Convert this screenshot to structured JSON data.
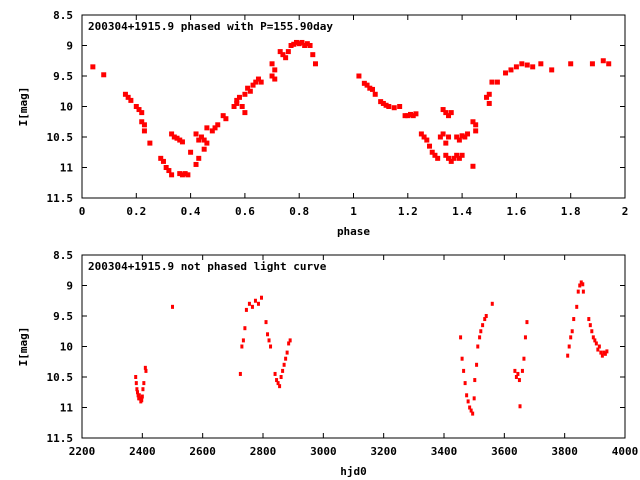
{
  "chart_data": [
    {
      "type": "scatter",
      "title": "200304+1915.9 phased with P=155.90day",
      "xlabel": "phase",
      "ylabel": "I[mag]",
      "xlim": [
        0,
        2
      ],
      "ylim": [
        11.5,
        8.5
      ],
      "y_inverted": true,
      "xticks": [
        0,
        0.2,
        0.4,
        0.6,
        0.8,
        1,
        1.2,
        1.4,
        1.6,
        1.8,
        2
      ],
      "xtick_labels": [
        "0",
        "0.2",
        "0.4",
        "0.6",
        "0.8",
        "1",
        "1.2",
        "1.4",
        "1.6",
        "1.8",
        "2"
      ],
      "yticks": [
        8.5,
        9,
        9.5,
        10,
        10.5,
        11,
        11.5
      ],
      "ytick_labels": [
        "8.5",
        "9",
        "9.5",
        "10",
        "10.5",
        "11",
        "11.5"
      ],
      "grid": false,
      "marker": "filled-square",
      "color": "#ff0000",
      "points": [
        [
          0.04,
          9.35
        ],
        [
          0.08,
          9.48
        ],
        [
          0.16,
          9.8
        ],
        [
          0.17,
          9.85
        ],
        [
          0.18,
          9.9
        ],
        [
          0.2,
          10.0
        ],
        [
          0.21,
          10.05
        ],
        [
          0.22,
          10.1
        ],
        [
          0.22,
          10.25
        ],
        [
          0.23,
          10.3
        ],
        [
          0.23,
          10.4
        ],
        [
          0.25,
          10.6
        ],
        [
          0.29,
          10.85
        ],
        [
          0.3,
          10.9
        ],
        [
          0.31,
          11.0
        ],
        [
          0.32,
          11.05
        ],
        [
          0.33,
          11.12
        ],
        [
          0.33,
          10.45
        ],
        [
          0.34,
          10.5
        ],
        [
          0.35,
          10.52
        ],
        [
          0.36,
          10.55
        ],
        [
          0.37,
          10.58
        ],
        [
          0.36,
          11.1
        ],
        [
          0.37,
          11.12
        ],
        [
          0.38,
          11.1
        ],
        [
          0.39,
          11.12
        ],
        [
          0.4,
          10.75
        ],
        [
          0.42,
          10.95
        ],
        [
          0.43,
          10.85
        ],
        [
          0.45,
          10.7
        ],
        [
          0.42,
          10.45
        ],
        [
          0.43,
          10.55
        ],
        [
          0.44,
          10.5
        ],
        [
          0.45,
          10.55
        ],
        [
          0.46,
          10.6
        ],
        [
          0.46,
          10.35
        ],
        [
          0.48,
          10.4
        ],
        [
          0.49,
          10.35
        ],
        [
          0.5,
          10.3
        ],
        [
          0.52,
          10.15
        ],
        [
          0.53,
          10.2
        ],
        [
          0.56,
          10.0
        ],
        [
          0.57,
          9.95
        ],
        [
          0.57,
          9.9
        ],
        [
          0.58,
          9.85
        ],
        [
          0.59,
          10.0
        ],
        [
          0.6,
          9.8
        ],
        [
          0.6,
          10.1
        ],
        [
          0.61,
          9.7
        ],
        [
          0.62,
          9.75
        ],
        [
          0.63,
          9.65
        ],
        [
          0.64,
          9.6
        ],
        [
          0.65,
          9.55
        ],
        [
          0.66,
          9.6
        ],
        [
          0.7,
          9.3
        ],
        [
          0.7,
          9.5
        ],
        [
          0.71,
          9.55
        ],
        [
          0.71,
          9.4
        ],
        [
          0.73,
          9.1
        ],
        [
          0.74,
          9.15
        ],
        [
          0.75,
          9.2
        ],
        [
          0.76,
          9.1
        ],
        [
          0.77,
          9.0
        ],
        [
          0.78,
          8.98
        ],
        [
          0.79,
          8.95
        ],
        [
          0.8,
          8.97
        ],
        [
          0.81,
          8.95
        ],
        [
          0.82,
          9.0
        ],
        [
          0.83,
          8.97
        ],
        [
          0.84,
          9.0
        ],
        [
          0.85,
          9.15
        ],
        [
          0.86,
          9.3
        ],
        [
          1.02,
          9.5
        ],
        [
          1.04,
          9.62
        ],
        [
          1.05,
          9.65
        ],
        [
          1.06,
          9.7
        ],
        [
          1.07,
          9.72
        ],
        [
          1.08,
          9.8
        ],
        [
          1.1,
          9.92
        ],
        [
          1.11,
          9.95
        ],
        [
          1.12,
          9.98
        ],
        [
          1.13,
          10.0
        ],
        [
          1.15,
          10.02
        ],
        [
          1.17,
          10.0
        ],
        [
          1.19,
          10.15
        ],
        [
          1.2,
          10.15
        ],
        [
          1.21,
          10.13
        ],
        [
          1.22,
          10.15
        ],
        [
          1.23,
          10.12
        ],
        [
          1.25,
          10.45
        ],
        [
          1.26,
          10.5
        ],
        [
          1.27,
          10.55
        ],
        [
          1.28,
          10.65
        ],
        [
          1.29,
          10.75
        ],
        [
          1.3,
          10.8
        ],
        [
          1.31,
          10.85
        ],
        [
          1.32,
          10.5
        ],
        [
          1.33,
          10.45
        ],
        [
          1.34,
          10.6
        ],
        [
          1.35,
          10.5
        ],
        [
          1.33,
          10.05
        ],
        [
          1.34,
          10.1
        ],
        [
          1.35,
          10.15
        ],
        [
          1.36,
          10.1
        ],
        [
          1.34,
          10.8
        ],
        [
          1.35,
          10.85
        ],
        [
          1.36,
          10.9
        ],
        [
          1.37,
          10.85
        ],
        [
          1.38,
          10.8
        ],
        [
          1.39,
          10.85
        ],
        [
          1.4,
          10.8
        ],
        [
          1.38,
          10.5
        ],
        [
          1.39,
          10.55
        ],
        [
          1.4,
          10.48
        ],
        [
          1.41,
          10.5
        ],
        [
          1.42,
          10.45
        ],
        [
          1.44,
          10.25
        ],
        [
          1.45,
          10.3
        ],
        [
          1.45,
          10.4
        ],
        [
          1.44,
          10.98
        ],
        [
          1.49,
          9.85
        ],
        [
          1.5,
          9.8
        ],
        [
          1.5,
          9.95
        ],
        [
          1.51,
          9.6
        ],
        [
          1.53,
          9.6
        ],
        [
          1.56,
          9.45
        ],
        [
          1.58,
          9.4
        ],
        [
          1.6,
          9.35
        ],
        [
          1.62,
          9.3
        ],
        [
          1.64,
          9.32
        ],
        [
          1.66,
          9.35
        ],
        [
          1.69,
          9.3
        ],
        [
          1.73,
          9.4
        ],
        [
          1.8,
          9.3
        ],
        [
          1.88,
          9.3
        ],
        [
          1.92,
          9.25
        ],
        [
          1.94,
          9.3
        ]
      ]
    },
    {
      "type": "scatter",
      "title": "200304+1915.9 not phased light curve",
      "xlabel": "hjd0",
      "ylabel": "I[mag]",
      "xlim": [
        2200,
        4000
      ],
      "ylim": [
        11.5,
        8.5
      ],
      "y_inverted": true,
      "xticks": [
        2200,
        2400,
        2600,
        2800,
        3000,
        3200,
        3400,
        3600,
        3800,
        4000
      ],
      "xtick_labels": [
        "2200",
        "2400",
        "2600",
        "2800",
        "3000",
        "3200",
        "3400",
        "3600",
        "3800",
        "4000"
      ],
      "yticks": [
        8.5,
        9,
        9.5,
        10,
        10.5,
        11,
        11.5
      ],
      "ytick_labels": [
        "8.5",
        "9",
        "9.5",
        "10",
        "10.5",
        "11",
        "11.5"
      ],
      "grid": false,
      "marker": "dot",
      "color": "#ff0000",
      "points": [
        [
          2378,
          10.5
        ],
        [
          2380,
          10.6
        ],
        [
          2382,
          10.7
        ],
        [
          2384,
          10.75
        ],
        [
          2386,
          10.8
        ],
        [
          2388,
          10.85
        ],
        [
          2390,
          10.8
        ],
        [
          2392,
          10.85
        ],
        [
          2395,
          10.9
        ],
        [
          2398,
          10.88
        ],
        [
          2400,
          10.82
        ],
        [
          2402,
          10.7
        ],
        [
          2405,
          10.6
        ],
        [
          2410,
          10.35
        ],
        [
          2412,
          10.4
        ],
        [
          2500,
          9.35
        ],
        [
          2725,
          10.45
        ],
        [
          2730,
          10.0
        ],
        [
          2735,
          9.9
        ],
        [
          2740,
          9.7
        ],
        [
          2745,
          9.4
        ],
        [
          2755,
          9.3
        ],
        [
          2765,
          9.35
        ],
        [
          2775,
          9.25
        ],
        [
          2785,
          9.3
        ],
        [
          2795,
          9.2
        ],
        [
          2810,
          9.6
        ],
        [
          2815,
          9.8
        ],
        [
          2820,
          9.9
        ],
        [
          2825,
          10.0
        ],
        [
          2840,
          10.45
        ],
        [
          2845,
          10.55
        ],
        [
          2850,
          10.6
        ],
        [
          2855,
          10.65
        ],
        [
          2860,
          10.5
        ],
        [
          2865,
          10.4
        ],
        [
          2870,
          10.3
        ],
        [
          2875,
          10.2
        ],
        [
          2880,
          10.1
        ],
        [
          2885,
          9.95
        ],
        [
          2890,
          9.9
        ],
        [
          3455,
          9.85
        ],
        [
          3460,
          10.2
        ],
        [
          3465,
          10.4
        ],
        [
          3470,
          10.6
        ],
        [
          3475,
          10.8
        ],
        [
          3480,
          10.9
        ],
        [
          3485,
          11.0
        ],
        [
          3490,
          11.05
        ],
        [
          3495,
          11.1
        ],
        [
          3500,
          10.85
        ],
        [
          3502,
          10.55
        ],
        [
          3508,
          10.3
        ],
        [
          3512,
          10.0
        ],
        [
          3518,
          9.85
        ],
        [
          3522,
          9.75
        ],
        [
          3528,
          9.65
        ],
        [
          3535,
          9.55
        ],
        [
          3540,
          9.5
        ],
        [
          3560,
          9.3
        ],
        [
          3635,
          10.4
        ],
        [
          3640,
          10.5
        ],
        [
          3645,
          10.45
        ],
        [
          3650,
          10.55
        ],
        [
          3652,
          10.98
        ],
        [
          3660,
          10.4
        ],
        [
          3665,
          10.2
        ],
        [
          3670,
          9.85
        ],
        [
          3675,
          9.6
        ],
        [
          3810,
          10.15
        ],
        [
          3815,
          10.0
        ],
        [
          3820,
          9.85
        ],
        [
          3825,
          9.75
        ],
        [
          3830,
          9.55
        ],
        [
          3840,
          9.35
        ],
        [
          3845,
          9.1
        ],
        [
          3850,
          9.0
        ],
        [
          3855,
          8.95
        ],
        [
          3860,
          8.98
        ],
        [
          3862,
          9.1
        ],
        [
          3880,
          9.55
        ],
        [
          3885,
          9.65
        ],
        [
          3890,
          9.75
        ],
        [
          3895,
          9.85
        ],
        [
          3900,
          9.9
        ],
        [
          3905,
          9.95
        ],
        [
          3910,
          10.05
        ],
        [
          3915,
          10.0
        ],
        [
          3920,
          10.1
        ],
        [
          3925,
          10.15
        ],
        [
          3930,
          10.1
        ],
        [
          3935,
          10.12
        ],
        [
          3940,
          10.08
        ]
      ]
    }
  ]
}
